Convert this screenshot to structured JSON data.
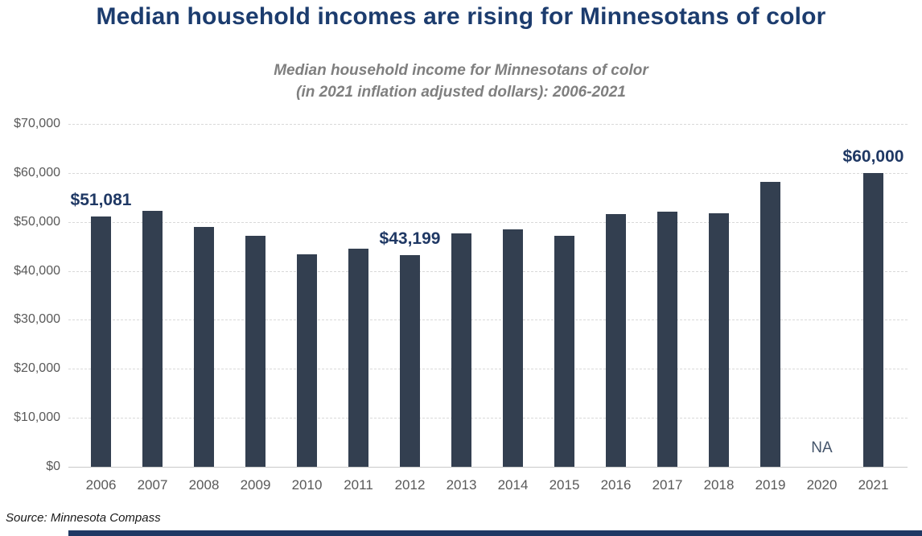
{
  "header": {
    "title": "Median household incomes are rising for Minnesotans of color",
    "subtitle_line1": "Median household income for Minnesotans of color",
    "subtitle_line2": "(in 2021 inflation adjusted dollars): 2006-2021"
  },
  "source": {
    "text": "Source: Minnesota Compass"
  },
  "colors": {
    "title": "#1c3c6e",
    "subtitle": "#7f7f7f",
    "bar": "#333f50",
    "data_label": "#1f3864",
    "na_label": "#44546a",
    "axis_label": "#595959",
    "gridline": "#d9d9d9",
    "axis_line": "#c9c9c9",
    "footer_bar": "#1f3864"
  },
  "chart_data": {
    "type": "bar",
    "title": "Median household income for Minnesotans of color (in 2021 inflation adjusted dollars): 2006-2021",
    "categories": [
      "2006",
      "2007",
      "2008",
      "2009",
      "2010",
      "2011",
      "2012",
      "2013",
      "2014",
      "2015",
      "2016",
      "2017",
      "2018",
      "2019",
      "2020",
      "2021"
    ],
    "values": [
      51081,
      52200,
      49000,
      47200,
      43400,
      44600,
      43199,
      47700,
      48400,
      47100,
      51600,
      52100,
      51700,
      58100,
      null,
      60000
    ],
    "missing_label": "NA",
    "data_labels": [
      {
        "index": 0,
        "text": "$51,081"
      },
      {
        "index": 6,
        "text": "$43,199"
      },
      {
        "index": 15,
        "text": "$60,000"
      }
    ],
    "xlabel": "",
    "ylabel": "",
    "ylim": [
      0,
      70000
    ],
    "ytick_step": 10000,
    "ytick_labels": [
      "$0",
      "$10,000",
      "$20,000",
      "$30,000",
      "$40,000",
      "$50,000",
      "$60,000",
      "$70,000"
    ],
    "grid": "horizontal-dashed",
    "legend": "none"
  }
}
